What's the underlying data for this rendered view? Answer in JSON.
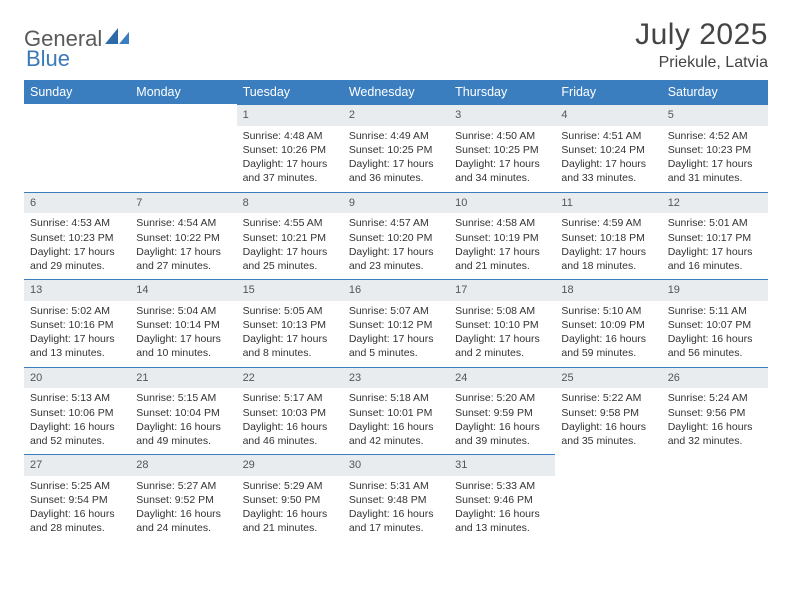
{
  "brand": {
    "part1": "General",
    "part2": "Blue"
  },
  "title": "July 2025",
  "location": "Priekule, Latvia",
  "colors": {
    "header_bg": "#3a7ebf",
    "header_text": "#ffffff",
    "daynum_bg": "#e9ecef",
    "rule": "#3a7ebf",
    "body_bg": "#ffffff",
    "brand_gray": "#5a5a5a",
    "brand_blue": "#3a7ab8"
  },
  "day_headers": [
    "Sunday",
    "Monday",
    "Tuesday",
    "Wednesday",
    "Thursday",
    "Friday",
    "Saturday"
  ],
  "weeks": [
    [
      null,
      null,
      {
        "num": "1",
        "sunrise": "Sunrise: 4:48 AM",
        "sunset": "Sunset: 10:26 PM",
        "daylight": "Daylight: 17 hours and 37 minutes."
      },
      {
        "num": "2",
        "sunrise": "Sunrise: 4:49 AM",
        "sunset": "Sunset: 10:25 PM",
        "daylight": "Daylight: 17 hours and 36 minutes."
      },
      {
        "num": "3",
        "sunrise": "Sunrise: 4:50 AM",
        "sunset": "Sunset: 10:25 PM",
        "daylight": "Daylight: 17 hours and 34 minutes."
      },
      {
        "num": "4",
        "sunrise": "Sunrise: 4:51 AM",
        "sunset": "Sunset: 10:24 PM",
        "daylight": "Daylight: 17 hours and 33 minutes."
      },
      {
        "num": "5",
        "sunrise": "Sunrise: 4:52 AM",
        "sunset": "Sunset: 10:23 PM",
        "daylight": "Daylight: 17 hours and 31 minutes."
      }
    ],
    [
      {
        "num": "6",
        "sunrise": "Sunrise: 4:53 AM",
        "sunset": "Sunset: 10:23 PM",
        "daylight": "Daylight: 17 hours and 29 minutes."
      },
      {
        "num": "7",
        "sunrise": "Sunrise: 4:54 AM",
        "sunset": "Sunset: 10:22 PM",
        "daylight": "Daylight: 17 hours and 27 minutes."
      },
      {
        "num": "8",
        "sunrise": "Sunrise: 4:55 AM",
        "sunset": "Sunset: 10:21 PM",
        "daylight": "Daylight: 17 hours and 25 minutes."
      },
      {
        "num": "9",
        "sunrise": "Sunrise: 4:57 AM",
        "sunset": "Sunset: 10:20 PM",
        "daylight": "Daylight: 17 hours and 23 minutes."
      },
      {
        "num": "10",
        "sunrise": "Sunrise: 4:58 AM",
        "sunset": "Sunset: 10:19 PM",
        "daylight": "Daylight: 17 hours and 21 minutes."
      },
      {
        "num": "11",
        "sunrise": "Sunrise: 4:59 AM",
        "sunset": "Sunset: 10:18 PM",
        "daylight": "Daylight: 17 hours and 18 minutes."
      },
      {
        "num": "12",
        "sunrise": "Sunrise: 5:01 AM",
        "sunset": "Sunset: 10:17 PM",
        "daylight": "Daylight: 17 hours and 16 minutes."
      }
    ],
    [
      {
        "num": "13",
        "sunrise": "Sunrise: 5:02 AM",
        "sunset": "Sunset: 10:16 PM",
        "daylight": "Daylight: 17 hours and 13 minutes."
      },
      {
        "num": "14",
        "sunrise": "Sunrise: 5:04 AM",
        "sunset": "Sunset: 10:14 PM",
        "daylight": "Daylight: 17 hours and 10 minutes."
      },
      {
        "num": "15",
        "sunrise": "Sunrise: 5:05 AM",
        "sunset": "Sunset: 10:13 PM",
        "daylight": "Daylight: 17 hours and 8 minutes."
      },
      {
        "num": "16",
        "sunrise": "Sunrise: 5:07 AM",
        "sunset": "Sunset: 10:12 PM",
        "daylight": "Daylight: 17 hours and 5 minutes."
      },
      {
        "num": "17",
        "sunrise": "Sunrise: 5:08 AM",
        "sunset": "Sunset: 10:10 PM",
        "daylight": "Daylight: 17 hours and 2 minutes."
      },
      {
        "num": "18",
        "sunrise": "Sunrise: 5:10 AM",
        "sunset": "Sunset: 10:09 PM",
        "daylight": "Daylight: 16 hours and 59 minutes."
      },
      {
        "num": "19",
        "sunrise": "Sunrise: 5:11 AM",
        "sunset": "Sunset: 10:07 PM",
        "daylight": "Daylight: 16 hours and 56 minutes."
      }
    ],
    [
      {
        "num": "20",
        "sunrise": "Sunrise: 5:13 AM",
        "sunset": "Sunset: 10:06 PM",
        "daylight": "Daylight: 16 hours and 52 minutes."
      },
      {
        "num": "21",
        "sunrise": "Sunrise: 5:15 AM",
        "sunset": "Sunset: 10:04 PM",
        "daylight": "Daylight: 16 hours and 49 minutes."
      },
      {
        "num": "22",
        "sunrise": "Sunrise: 5:17 AM",
        "sunset": "Sunset: 10:03 PM",
        "daylight": "Daylight: 16 hours and 46 minutes."
      },
      {
        "num": "23",
        "sunrise": "Sunrise: 5:18 AM",
        "sunset": "Sunset: 10:01 PM",
        "daylight": "Daylight: 16 hours and 42 minutes."
      },
      {
        "num": "24",
        "sunrise": "Sunrise: 5:20 AM",
        "sunset": "Sunset: 9:59 PM",
        "daylight": "Daylight: 16 hours and 39 minutes."
      },
      {
        "num": "25",
        "sunrise": "Sunrise: 5:22 AM",
        "sunset": "Sunset: 9:58 PM",
        "daylight": "Daylight: 16 hours and 35 minutes."
      },
      {
        "num": "26",
        "sunrise": "Sunrise: 5:24 AM",
        "sunset": "Sunset: 9:56 PM",
        "daylight": "Daylight: 16 hours and 32 minutes."
      }
    ],
    [
      {
        "num": "27",
        "sunrise": "Sunrise: 5:25 AM",
        "sunset": "Sunset: 9:54 PM",
        "daylight": "Daylight: 16 hours and 28 minutes."
      },
      {
        "num": "28",
        "sunrise": "Sunrise: 5:27 AM",
        "sunset": "Sunset: 9:52 PM",
        "daylight": "Daylight: 16 hours and 24 minutes."
      },
      {
        "num": "29",
        "sunrise": "Sunrise: 5:29 AM",
        "sunset": "Sunset: 9:50 PM",
        "daylight": "Daylight: 16 hours and 21 minutes."
      },
      {
        "num": "30",
        "sunrise": "Sunrise: 5:31 AM",
        "sunset": "Sunset: 9:48 PM",
        "daylight": "Daylight: 16 hours and 17 minutes."
      },
      {
        "num": "31",
        "sunrise": "Sunrise: 5:33 AM",
        "sunset": "Sunset: 9:46 PM",
        "daylight": "Daylight: 16 hours and 13 minutes."
      },
      null,
      null
    ]
  ]
}
